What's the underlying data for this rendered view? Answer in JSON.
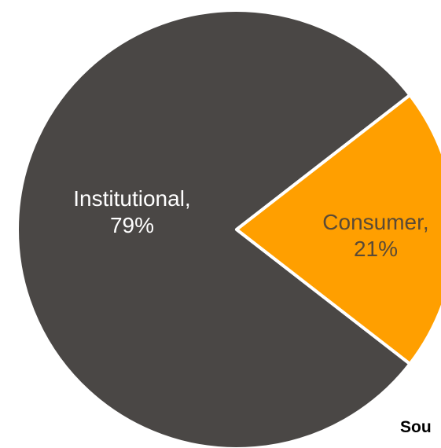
{
  "chart_data": {
    "type": "pie",
    "slices": [
      {
        "label": "Institutional,",
        "value": 79,
        "value_label": "79%",
        "color": "#4a4745",
        "label_color": "#ffffff"
      },
      {
        "label": "Consumer,",
        "value": 21,
        "value_label": "21%",
        "color": "#ff9f00",
        "label_color": "#5a4a36"
      }
    ],
    "title": "",
    "legend": "none"
  },
  "source_text": "Sou",
  "colors": {
    "background": "#ffffff",
    "separator": "#ffffff"
  }
}
